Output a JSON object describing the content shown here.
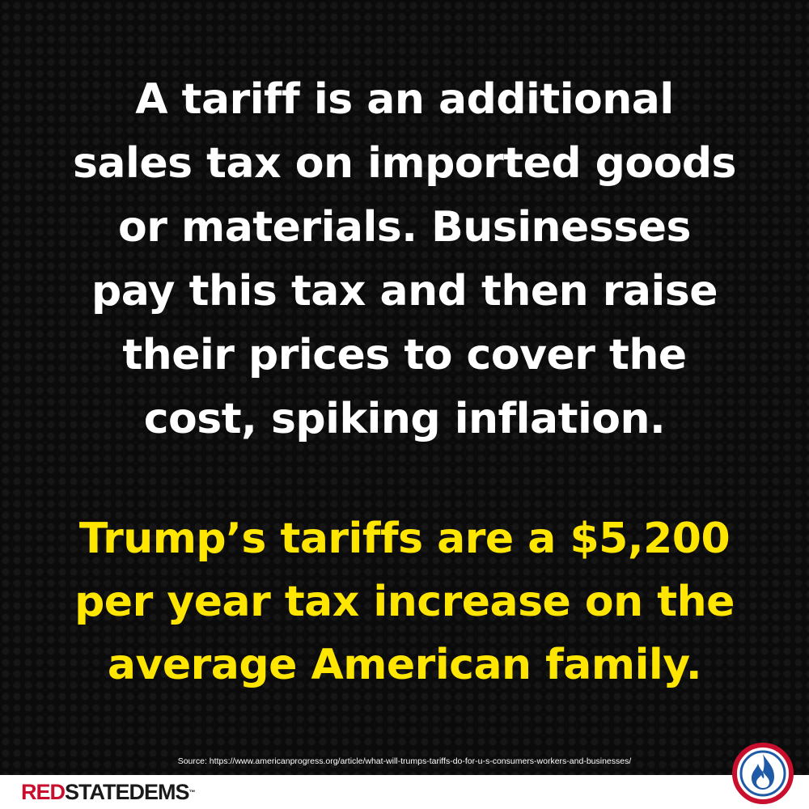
{
  "headline": {
    "lines": [
      "A tariff is an additional",
      "sales tax on imported goods",
      "or materials. Businesses",
      "pay this tax and then raise",
      "their prices to cover the",
      "cost, spiking inflation."
    ]
  },
  "highlight": {
    "lines": [
      "Trump’s tariffs are a $5,200",
      "per year tax increase on the",
      "average American family."
    ]
  },
  "source": "Source: https://www.americanprogress.org/article/what-will-trumps-tariffs-do-for-u-s-consumers-workers-and-businesses/",
  "brand": {
    "part1": "RED",
    "part2": "STATE",
    "part3": "DEMS",
    "tm": "™"
  },
  "colors": {
    "background": "#0a0a0a",
    "text": "#ffffff",
    "highlight": "#ffe600",
    "brand_red": "#c8102e",
    "logo_blue": "#1f5aa6"
  },
  "icons": {
    "logo": "flame-circle-logo-icon"
  }
}
